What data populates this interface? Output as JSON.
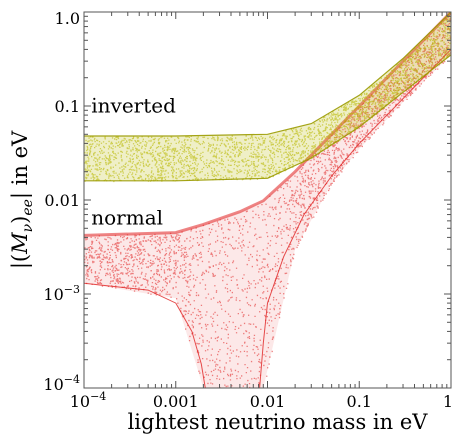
{
  "chart_data": {
    "type": "scatter",
    "title": "",
    "xlabel": "lightest neutrino mass in eV",
    "ylabel": "|(M_ν)_ee| in eV",
    "xscale": "log",
    "yscale": "log",
    "xlim": [
      0.0001,
      1
    ],
    "ylim": [
      0.0001,
      1
    ],
    "grid": false,
    "frame": "box with inward ticks",
    "x_ticks": [
      {
        "value": 0.0001,
        "base": "10",
        "exp": "−4"
      },
      {
        "value": 0.001,
        "label": "0.001"
      },
      {
        "value": 0.01,
        "label": "0.01"
      },
      {
        "value": 0.1,
        "label": "0.1"
      },
      {
        "value": 1,
        "label": "1"
      }
    ],
    "y_ticks": [
      {
        "value": 0.0001,
        "base": "10",
        "exp": "−4"
      },
      {
        "value": 0.001,
        "base": "10",
        "exp": "−3"
      },
      {
        "value": 0.01,
        "label": "0.01"
      },
      {
        "value": 0.1,
        "label": "0.1"
      },
      {
        "value": 1,
        "label": "1.0"
      }
    ],
    "series": [
      {
        "name": "inverted",
        "color": "#b8b800",
        "label_position": [
          0.00012,
          0.085
        ],
        "band": [
          {
            "x": 0.0001,
            "lower": 0.016,
            "upper": 0.048
          },
          {
            "x": 0.001,
            "lower": 0.016,
            "upper": 0.048
          },
          {
            "x": 0.01,
            "lower": 0.017,
            "upper": 0.05
          },
          {
            "x": 0.03,
            "lower": 0.028,
            "upper": 0.065
          },
          {
            "x": 0.1,
            "lower": 0.06,
            "upper": 0.13
          },
          {
            "x": 0.3,
            "lower": 0.14,
            "upper": 0.32
          },
          {
            "x": 1,
            "lower": 0.35,
            "upper": 1.0
          }
        ]
      },
      {
        "name": "normal",
        "color": "#e02020",
        "label_position": [
          0.00012,
          0.0055
        ],
        "band": [
          {
            "x": 0.0001,
            "lower": 0.0013,
            "upper": 0.0042
          },
          {
            "x": 0.001,
            "lower": 0.0009,
            "upper": 0.0045
          },
          {
            "x": 0.002,
            "lower": 0.0001,
            "upper": 0.0055
          },
          {
            "x": 0.005,
            "lower": 0.0001,
            "upper": 0.0075
          },
          {
            "x": 0.009,
            "lower": 0.0001,
            "upper": 0.0098
          },
          {
            "x": 0.02,
            "lower": 0.003,
            "upper": 0.02
          },
          {
            "x": 0.05,
            "lower": 0.015,
            "upper": 0.05
          },
          {
            "x": 0.1,
            "lower": 0.035,
            "upper": 0.1
          },
          {
            "x": 0.3,
            "lower": 0.11,
            "upper": 0.3
          },
          {
            "x": 1,
            "lower": 0.35,
            "upper": 1.0
          }
        ],
        "funnel_lower_edge": [
          {
            "x": 0.0001,
            "y": 0.0013
          },
          {
            "x": 0.0005,
            "y": 0.0011
          },
          {
            "x": 0.001,
            "y": 0.0008
          },
          {
            "x": 0.0015,
            "y": 0.0004
          },
          {
            "x": 0.0019,
            "y": 0.00018
          },
          {
            "x": 0.0021,
            "y": 0.0001
          }
        ],
        "funnel_right_edge": [
          {
            "x": 0.0082,
            "y": 0.0001
          },
          {
            "x": 0.009,
            "y": 0.0003
          },
          {
            "x": 0.01,
            "y": 0.0008
          },
          {
            "x": 0.015,
            "y": 0.0025
          },
          {
            "x": 0.025,
            "y": 0.007
          },
          {
            "x": 0.05,
            "y": 0.018
          },
          {
            "x": 0.1,
            "y": 0.04
          },
          {
            "x": 0.3,
            "y": 0.12
          },
          {
            "x": 1,
            "y": 0.4
          }
        ]
      }
    ]
  }
}
